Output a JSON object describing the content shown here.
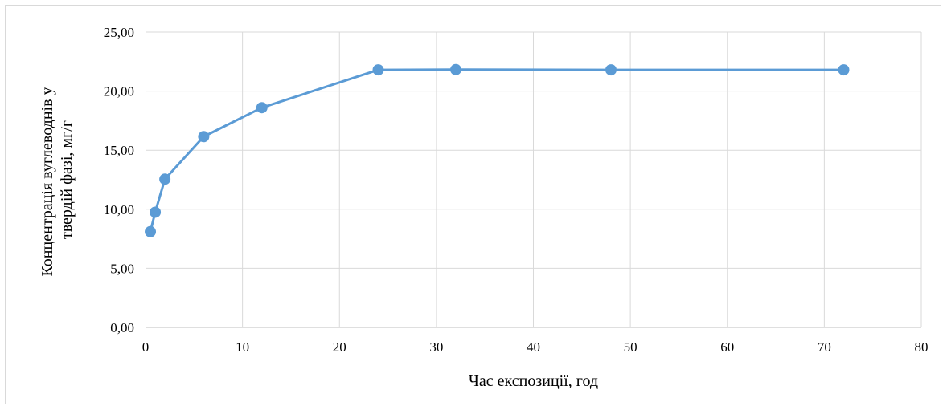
{
  "chart_data": {
    "type": "line",
    "title": "",
    "xlabel": "Час експозиції, год",
    "ylabel_lines": [
      "Концентрація вуглеводнів у",
      "твердій фазі, мг/г"
    ],
    "xlim": [
      0,
      80
    ],
    "ylim": [
      0,
      25
    ],
    "x_ticks": [
      0,
      10,
      20,
      30,
      40,
      50,
      60,
      70,
      80
    ],
    "x_tick_labels": [
      "0",
      "10",
      "20",
      "30",
      "40",
      "50",
      "60",
      "70",
      "80"
    ],
    "y_ticks": [
      0,
      5,
      10,
      15,
      20,
      25
    ],
    "y_tick_labels": [
      "0,00",
      "5,00",
      "10,00",
      "15,00",
      "20,00",
      "25,00"
    ],
    "grid": true,
    "legend": "none",
    "series": [
      {
        "color": "#5b9bd5",
        "marker": "circle",
        "x": [
          0.5,
          1,
          2,
          6,
          12,
          24,
          32,
          48,
          72
        ],
        "y": [
          8.1,
          9.75,
          12.55,
          16.15,
          18.6,
          21.8,
          21.82,
          21.8,
          21.8
        ]
      }
    ]
  }
}
